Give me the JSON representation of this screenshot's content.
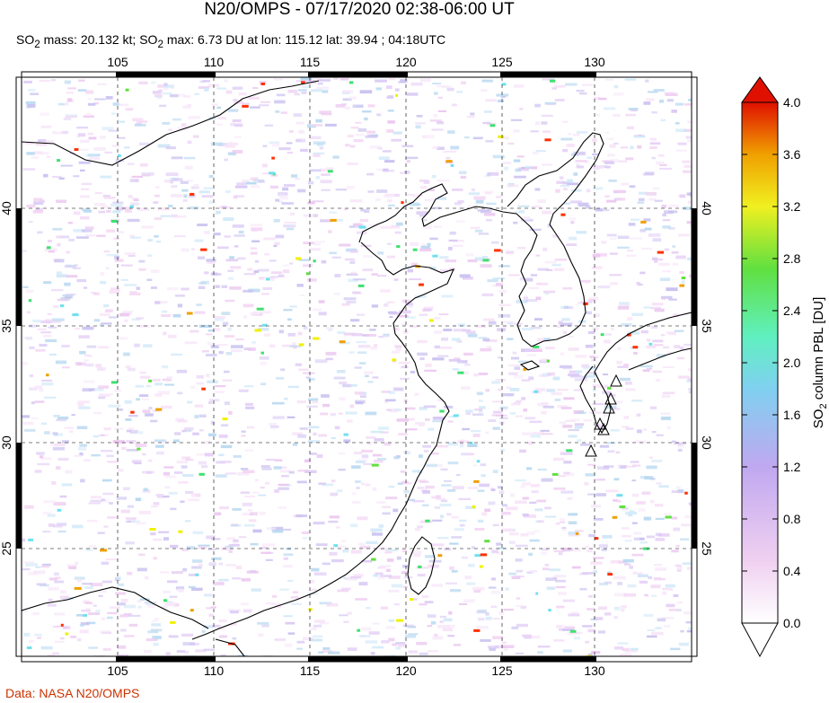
{
  "title": "N20/OMPS - 07/17/2020 02:38-06:00 UT",
  "subtitle": {
    "so2_mass_prefix": "SO",
    "so2_mass_sub": "2",
    "so2_mass_text": " mass: 20.132 kt; SO",
    "so2_max_sub": "2",
    "so2_max_text": " max: 6.73 DU at lon: 115.12 lat: 39.94 ; 04:18UTC"
  },
  "credit": "Data: NASA N20/OMPS",
  "map": {
    "lon_ticks": [
      "105",
      "110",
      "115",
      "120",
      "125",
      "130"
    ],
    "lat_ticks": [
      "40",
      "35",
      "30",
      "25"
    ],
    "lon_range": [
      100.2,
      135
    ],
    "lat_range": [
      20,
      45.5
    ]
  },
  "colorbar": {
    "label_prefix": "SO",
    "label_sub": "2",
    "label_suffix": " column PBL [DU]",
    "ticks": [
      "4.0",
      "3.6",
      "3.2",
      "2.8",
      "2.4",
      "2.0",
      "1.6",
      "1.2",
      "0.8",
      "0.4",
      "0.0"
    ],
    "colors": [
      "#ffffff",
      "#f0c8f0",
      "#b0b0f0",
      "#70e0f0",
      "#40e070",
      "#f0f000",
      "#f0a000",
      "#ff3000",
      "#e00000"
    ]
  }
}
